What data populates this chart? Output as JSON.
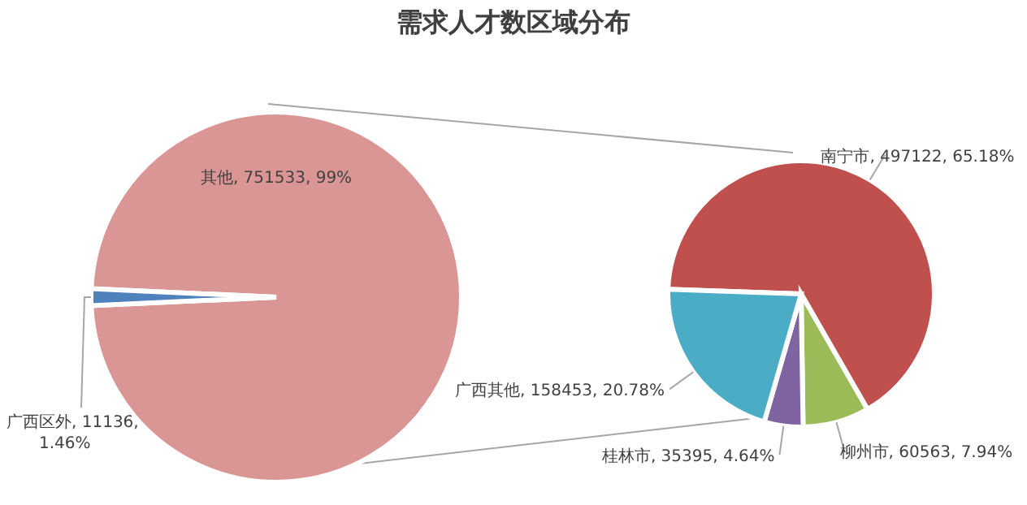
{
  "chart_data": [
    {
      "type": "pie",
      "title": "需求人才数区域分布",
      "categories": [
        "其他",
        "广西区外"
      ],
      "values": [
        751533,
        11136
      ],
      "colors": [
        "#d99694",
        "#4f81bd"
      ],
      "value_labels": [
        "751533, 99%",
        "11136, 1.46%"
      ]
    },
    {
      "type": "pie",
      "categories": [
        "南宁市",
        "柳州市",
        "桂林市",
        "广西其他"
      ],
      "values": [
        497122,
        60563,
        35395,
        158453
      ],
      "colors": [
        "#c0504d",
        "#9bbb59",
        "#8064a2",
        "#4bacc6"
      ],
      "value_labels": [
        "497122, 65.18%",
        "60563, 7.94%",
        "35395, 4.64%",
        "158453, 20.78%"
      ]
    }
  ]
}
